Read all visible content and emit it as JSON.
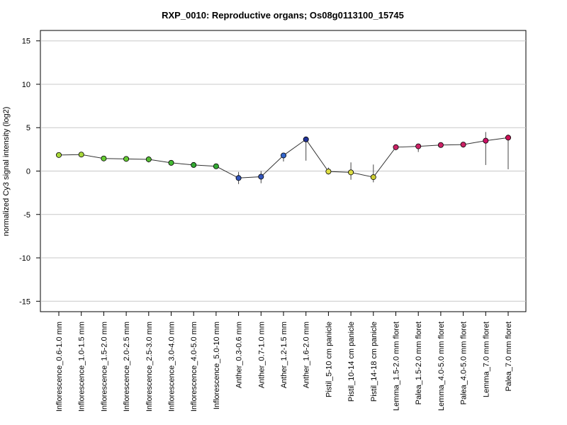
{
  "chart_data": {
    "type": "line",
    "title": "RXP_0010: Reproductive organs; Os08g0113100_15745",
    "ylabel": "normalized Cy3 signal intensity (log2)",
    "xlabel": "",
    "ylim": [
      -16.2,
      16.2
    ],
    "yticks": [
      -15,
      -10,
      -5,
      0,
      5,
      10,
      15
    ],
    "grid": true,
    "categories": [
      "Inflorescence_0.6-1.0 mm",
      "Inflorescence_1.0-1.5 mm",
      "Inflorescence_1.5-2.0 mm",
      "Inflorescence_2.0-2.5 mm",
      "Inflorescence_2.5-3.0 mm",
      "Inflorescence_3.0-4.0 mm",
      "Inflorescence_4.0-5.0 mm",
      "Inflorescence_5.0-10 mm",
      "Anther_0.3-0.6 mm",
      "Anther_0.7-1.0 mm",
      "Anther_1.2-1.5 mm",
      "Anther_1.6-2.0 mm",
      "Pistil_5-10 cm panicle",
      "Pistil_10-14 cm panicle",
      "Pistil_14-18 cm panicle",
      "Lemma_1.5-2.0 mm floret",
      "Palea_1.5-2.0 mm floret",
      "Lemma_4.0-5.0 mm floret",
      "Palea_4.0-5.0 mm floret",
      "Lemma_7.0 mm floret",
      "Palea_7.0 mm floret"
    ],
    "series": [
      {
        "values": [
          1.85,
          1.9,
          1.45,
          1.4,
          1.35,
          0.95,
          0.7,
          0.55,
          -0.8,
          -0.65,
          1.8,
          3.65,
          -0.05,
          -0.15,
          -0.7,
          2.75,
          2.85,
          3.0,
          3.05,
          3.5,
          3.85
        ],
        "err_low": [
          1.6,
          1.7,
          1.3,
          1.3,
          1.0,
          0.75,
          0.55,
          0.35,
          -1.5,
          -1.4,
          1.1,
          1.2,
          -0.4,
          -1.0,
          -1.3,
          2.4,
          2.2,
          2.8,
          2.7,
          0.7,
          0.2
        ],
        "err_high": [
          2.1,
          2.1,
          1.6,
          1.5,
          1.7,
          1.1,
          0.85,
          0.75,
          -0.1,
          0.0,
          2.1,
          3.85,
          0.4,
          1.0,
          0.75,
          3.0,
          3.1,
          3.2,
          3.3,
          4.5,
          4.2
        ],
        "colors": [
          "#a8d83a",
          "#a8d83a",
          "#66cc33",
          "#66cc33",
          "#55bb33",
          "#44bb33",
          "#33aa33",
          "#33aa33",
          "#3355bb",
          "#3355bb",
          "#3366cc",
          "#223399",
          "#dddd44",
          "#dddd44",
          "#cccc33",
          "#cc2266",
          "#cc2266",
          "#cc2266",
          "#cc2266",
          "#cc1166",
          "#cc1155"
        ]
      }
    ]
  }
}
